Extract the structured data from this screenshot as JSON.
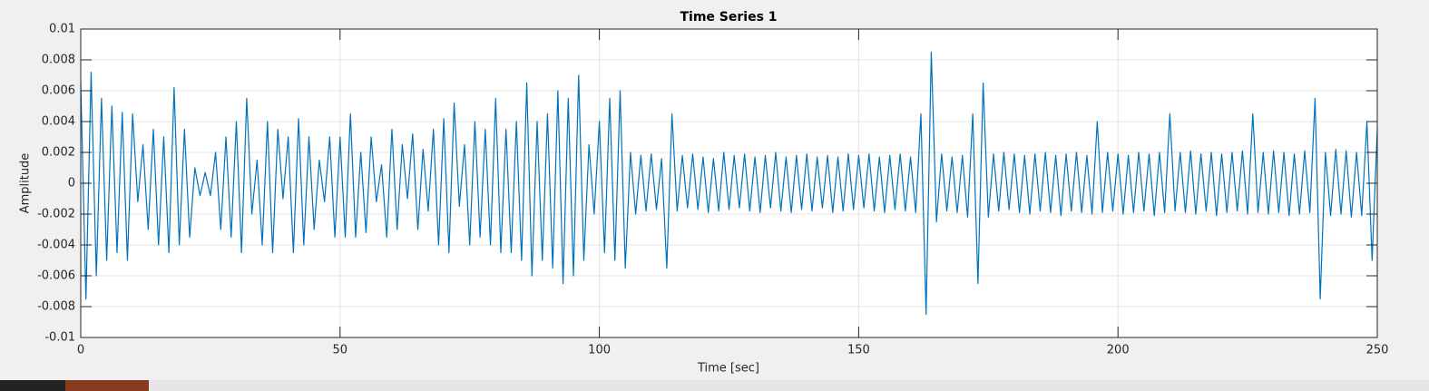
{
  "chart_data": {
    "type": "line",
    "title": "Time Series 1",
    "x_label": "Time [sec]",
    "y_label": "Amplitude",
    "color": "#0072bd",
    "grid": true,
    "xlim": [
      0,
      250
    ],
    "xticks": [
      0,
      50,
      100,
      150,
      200,
      250
    ],
    "ylim": [
      -0.01,
      0.01
    ],
    "yticks": [
      -0.01,
      -0.008,
      -0.006,
      -0.004,
      -0.002,
      0,
      0.002,
      0.004,
      0.006,
      0.008,
      0.01
    ],
    "x": [
      0,
      1,
      2,
      3,
      4,
      5,
      6,
      7,
      8,
      9,
      10,
      11,
      12,
      13,
      14,
      15,
      16,
      17,
      18,
      19,
      20,
      21,
      22,
      23,
      24,
      25,
      26,
      27,
      28,
      29,
      30,
      31,
      32,
      33,
      34,
      35,
      36,
      37,
      38,
      39,
      40,
      41,
      42,
      43,
      44,
      45,
      46,
      47,
      48,
      49,
      50,
      51,
      52,
      53,
      54,
      55,
      56,
      57,
      58,
      59,
      60,
      61,
      62,
      63,
      64,
      65,
      66,
      67,
      68,
      69,
      70,
      71,
      72,
      73,
      74,
      75,
      76,
      77,
      78,
      79,
      80,
      81,
      82,
      83,
      84,
      85,
      86,
      87,
      88,
      89,
      90,
      91,
      92,
      93,
      94,
      95,
      96,
      97,
      98,
      99,
      100,
      101,
      102,
      103,
      104,
      105,
      106,
      107,
      108,
      109,
      110,
      111,
      112,
      113,
      114,
      115,
      116,
      117,
      118,
      119,
      120,
      121,
      122,
      123,
      124,
      125,
      126,
      127,
      128,
      129,
      130,
      131,
      132,
      133,
      134,
      135,
      136,
      137,
      138,
      139,
      140,
      141,
      142,
      143,
      144,
      145,
      146,
      147,
      148,
      149,
      150,
      151,
      152,
      153,
      154,
      155,
      156,
      157,
      158,
      159,
      160,
      161,
      162,
      163,
      164,
      165,
      166,
      167,
      168,
      169,
      170,
      171,
      172,
      173,
      174,
      175,
      176,
      177,
      178,
      179,
      180,
      181,
      182,
      183,
      184,
      185,
      186,
      187,
      188,
      189,
      190,
      191,
      192,
      193,
      194,
      195,
      196,
      197,
      198,
      199,
      200,
      201,
      202,
      203,
      204,
      205,
      206,
      207,
      208,
      209,
      210,
      211,
      212,
      213,
      214,
      215,
      216,
      217,
      218,
      219,
      220,
      221,
      222,
      223,
      224,
      225,
      226,
      227,
      228,
      229,
      230,
      231,
      232,
      233,
      234,
      235,
      236,
      237,
      238,
      239,
      240,
      241,
      242,
      243,
      244,
      245,
      246,
      247,
      248,
      249,
      250
    ],
    "values": [
      0.0065,
      -0.0075,
      0.0072,
      -0.006,
      0.0055,
      -0.005,
      0.005,
      -0.0045,
      0.0046,
      -0.005,
      0.0045,
      -0.0012,
      0.0025,
      -0.003,
      0.0035,
      -0.004,
      0.003,
      -0.0045,
      0.0062,
      -0.004,
      0.0035,
      -0.0035,
      0.001,
      -0.0008,
      0.0007,
      -0.0008,
      0.002,
      -0.003,
      0.003,
      -0.0035,
      0.004,
      -0.0045,
      0.0055,
      -0.002,
      0.0015,
      -0.004,
      0.004,
      -0.0045,
      0.0035,
      -0.001,
      0.003,
      -0.0045,
      0.0042,
      -0.004,
      0.003,
      -0.003,
      0.0015,
      -0.0012,
      0.003,
      -0.0035,
      0.003,
      -0.0035,
      0.0045,
      -0.0035,
      0.002,
      -0.0032,
      0.003,
      -0.0012,
      0.0012,
      -0.0035,
      0.0035,
      -0.003,
      0.0025,
      -0.001,
      0.0032,
      -0.003,
      0.0022,
      -0.0018,
      0.0035,
      -0.004,
      0.0042,
      -0.0045,
      0.0052,
      -0.0015,
      0.0025,
      -0.004,
      0.004,
      -0.0035,
      0.0035,
      -0.004,
      0.0055,
      -0.0045,
      0.0035,
      -0.0045,
      0.004,
      -0.005,
      0.0065,
      -0.006,
      0.004,
      -0.005,
      0.0045,
      -0.0055,
      0.006,
      -0.0065,
      0.0055,
      -0.006,
      0.007,
      -0.005,
      0.0025,
      -0.002,
      0.004,
      -0.0045,
      0.0055,
      -0.005,
      0.006,
      -0.0055,
      0.002,
      -0.002,
      0.0018,
      -0.0018,
      0.0019,
      -0.0017,
      0.0016,
      -0.0055,
      0.0045,
      -0.0018,
      0.0018,
      -0.0016,
      0.0019,
      -0.0017,
      0.0017,
      -0.0019,
      0.0016,
      -0.0018,
      0.002,
      -0.0017,
      0.0018,
      -0.0016,
      0.0019,
      -0.0018,
      0.0017,
      -0.0019,
      0.0018,
      -0.0016,
      0.002,
      -0.0018,
      0.0017,
      -0.0019,
      0.0018,
      -0.0017,
      0.0019,
      -0.0018,
      0.0017,
      -0.0016,
      0.0018,
      -0.0019,
      0.0017,
      -0.0018,
      0.0019,
      -0.0017,
      0.0018,
      -0.0016,
      0.0019,
      -0.0018,
      0.0017,
      -0.0019,
      0.0018,
      -0.0017,
      0.0019,
      -0.0018,
      0.0017,
      -0.0019,
      0.0045,
      -0.0085,
      0.0085,
      -0.0025,
      0.0019,
      -0.0018,
      0.0017,
      -0.0019,
      0.0018,
      -0.0022,
      0.0045,
      -0.0065,
      0.0065,
      -0.0022,
      0.0019,
      -0.0018,
      0.002,
      -0.0017,
      0.0019,
      -0.0019,
      0.0018,
      -0.002,
      0.0019,
      -0.0018,
      0.002,
      -0.0019,
      0.0018,
      -0.0021,
      0.0019,
      -0.0018,
      0.002,
      -0.0019,
      0.0018,
      -0.002,
      0.004,
      -0.0019,
      0.002,
      -0.0018,
      0.0019,
      -0.002,
      0.0018,
      -0.0019,
      0.002,
      -0.0018,
      0.0019,
      -0.0021,
      0.002,
      -0.0019,
      0.0045,
      -0.0018,
      0.002,
      -0.0019,
      0.0021,
      -0.002,
      0.0019,
      -0.0018,
      0.002,
      -0.0021,
      0.0019,
      -0.0019,
      0.002,
      -0.0018,
      0.0021,
      -0.002,
      0.0045,
      -0.0019,
      0.002,
      -0.002,
      0.0021,
      -0.0019,
      0.002,
      -0.0021,
      0.0019,
      -0.002,
      0.0021,
      -0.0019,
      0.0055,
      -0.0075,
      0.002,
      -0.0021,
      0.0022,
      -0.002,
      0.0021,
      -0.0022,
      0.002,
      -0.0021,
      0.004,
      -0.005,
      0.0035
    ]
  }
}
